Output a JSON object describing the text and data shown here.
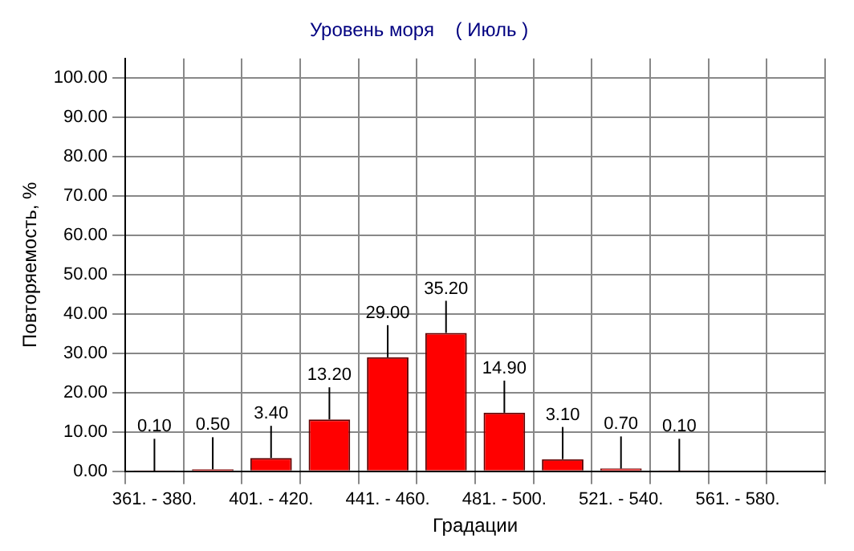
{
  "chart_data": {
    "type": "bar",
    "title": "Уровень моря    ( Июль )",
    "xlabel": "Градации",
    "ylabel": "Повторяемость, %",
    "categories": [
      "361. - 380.",
      null,
      "401. - 420.",
      null,
      "441. - 460.",
      null,
      "481. - 500.",
      null,
      "521. - 540.",
      null,
      "561. - 580.",
      null
    ],
    "values": [
      0.1,
      0.5,
      3.4,
      13.2,
      29.0,
      35.2,
      14.9,
      3.1,
      0.7,
      0.1,
      null,
      null
    ],
    "value_labels": [
      "0.10",
      "0.50",
      "3.40",
      "13.20",
      "29.00",
      "35.20",
      "14.90",
      "3.10",
      "0.70",
      "0.10",
      null,
      null
    ],
    "color": "#ff0000",
    "ylim": [
      0,
      105
    ],
    "yticks": [
      {
        "value": 0,
        "label": "0.00"
      },
      {
        "value": 10,
        "label": "10.00"
      },
      {
        "value": 20,
        "label": "20.00"
      },
      {
        "value": 30,
        "label": "30.00"
      },
      {
        "value": 40,
        "label": "40.00"
      },
      {
        "value": 50,
        "label": "50.00"
      },
      {
        "value": 60,
        "label": "60.00"
      },
      {
        "value": 70,
        "label": "70.00"
      },
      {
        "value": 80,
        "label": "80.00"
      },
      {
        "value": 90,
        "label": "90.00"
      },
      {
        "value": 100,
        "label": "100.00"
      }
    ],
    "grid": true,
    "legend": false
  }
}
